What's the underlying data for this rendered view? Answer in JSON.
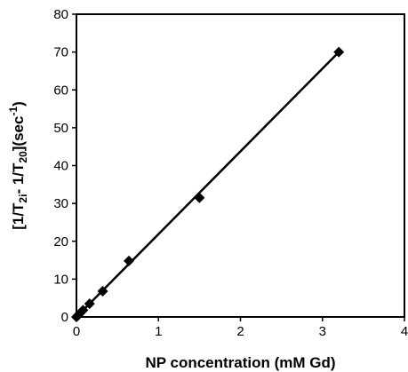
{
  "chart_data": {
    "type": "scatter",
    "title": "",
    "xlabel": "NP concentration (mM Gd)",
    "ylabel": {
      "open": "[1/T",
      "sub1": "2i",
      "mid": "- 1/T",
      "sub2": "20",
      "close": "](sec",
      "sup": "-1",
      "end": ")"
    },
    "xlim": [
      0,
      4
    ],
    "ylim": [
      0,
      80
    ],
    "x_ticks": [
      0,
      1,
      2,
      3,
      4
    ],
    "y_ticks": [
      0,
      10,
      20,
      30,
      40,
      50,
      60,
      70,
      80
    ],
    "grid": false,
    "legend": "none",
    "marker": "diamond",
    "colors": {
      "marker": "#000000",
      "line": "#000000",
      "axis": "#000000"
    },
    "series": [
      {
        "x": [
          0,
          0.02,
          0.04,
          0.08,
          0.16,
          0.32,
          0.64,
          1.5,
          3.2
        ],
        "y": [
          0,
          0.4,
          0.9,
          1.8,
          3.5,
          6.8,
          14.8,
          31.5,
          70
        ]
      }
    ],
    "trendline": {
      "x": [
        0,
        3.2
      ],
      "y": [
        0,
        70
      ]
    }
  }
}
